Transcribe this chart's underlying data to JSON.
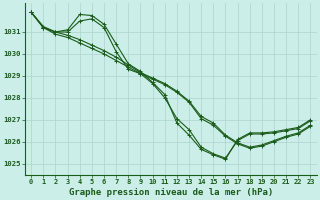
{
  "title": "Graphe pression niveau de la mer (hPa)",
  "bg_color": "#cceee8",
  "grid_color": "#aad4ce",
  "line_color": "#1a5c1a",
  "xlim": [
    -0.5,
    23.5
  ],
  "ylim": [
    1024.5,
    1032.3
  ],
  "yticks": [
    1025,
    1026,
    1027,
    1028,
    1029,
    1030,
    1031
  ],
  "xticks": [
    0,
    1,
    2,
    3,
    4,
    5,
    6,
    7,
    8,
    9,
    10,
    11,
    12,
    13,
    14,
    15,
    16,
    17,
    18,
    19,
    20,
    21,
    22,
    23
  ],
  "series": [
    [
      1031.9,
      1031.2,
      1031.0,
      1031.1,
      1031.8,
      1031.75,
      1031.35,
      1030.45,
      1029.55,
      1029.2,
      1028.7,
      1028.15,
      1026.85,
      1026.3,
      1025.65,
      1025.4,
      1025.2,
      1026.1,
      1026.4,
      1026.4,
      1026.45,
      1026.55,
      1026.65,
      1027.0
    ],
    [
      1031.9,
      1031.2,
      1031.0,
      1031.0,
      1031.5,
      1031.6,
      1031.2,
      1030.1,
      1029.3,
      1029.1,
      1028.65,
      1028.0,
      1027.05,
      1026.55,
      1025.75,
      1025.45,
      1025.25,
      1026.05,
      1026.35,
      1026.35,
      1026.4,
      1026.5,
      1026.6,
      1026.95
    ],
    [
      1031.9,
      1031.25,
      1031.0,
      1030.85,
      1030.65,
      1030.4,
      1030.15,
      1029.85,
      1029.5,
      1029.15,
      1028.9,
      1028.65,
      1028.3,
      1027.85,
      1027.15,
      1026.85,
      1026.3,
      1025.95,
      1025.75,
      1025.85,
      1026.05,
      1026.25,
      1026.4,
      1026.75
    ],
    [
      1031.9,
      1031.2,
      1030.9,
      1030.75,
      1030.5,
      1030.25,
      1030.0,
      1029.7,
      1029.4,
      1029.1,
      1028.85,
      1028.6,
      1028.25,
      1027.8,
      1027.05,
      1026.75,
      1026.25,
      1025.9,
      1025.7,
      1025.8,
      1026.0,
      1026.2,
      1026.35,
      1026.7
    ]
  ]
}
